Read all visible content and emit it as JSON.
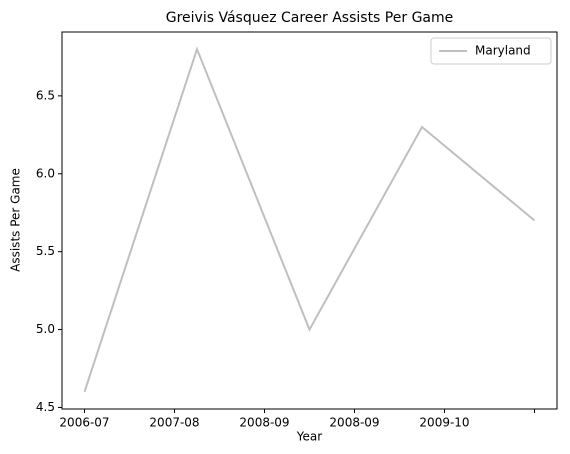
{
  "chart_data": {
    "type": "line",
    "title": "Greivis Vásquez Career Assists Per Game",
    "xlabel": "Year",
    "ylabel": "Assists Per Game",
    "x": [
      0,
      1,
      2,
      3,
      4
    ],
    "series": [
      {
        "name": "Maryland",
        "color": "#bfbfbf",
        "values": [
          4.6,
          6.8,
          5.0,
          6.3,
          5.7
        ]
      }
    ],
    "xlim": [
      -0.2,
      4.2
    ],
    "xticks": [
      {
        "value": 0,
        "label": "2006-07"
      },
      {
        "value": 0.8,
        "label": "2007-08"
      },
      {
        "value": 1.6,
        "label": "2008-09"
      },
      {
        "value": 2.4,
        "label": "2008-09"
      },
      {
        "value": 3.2,
        "label": "2009-10"
      },
      {
        "value": 4.0,
        "label": null
      }
    ],
    "ylim": [
      4.49,
      6.91
    ],
    "yticks": [
      {
        "value": 4.5,
        "label": "4.5"
      },
      {
        "value": 5.0,
        "label": "5.0"
      },
      {
        "value": 5.5,
        "label": "5.5"
      },
      {
        "value": 6.0,
        "label": "6.0"
      },
      {
        "value": 6.5,
        "label": "6.5"
      }
    ],
    "legend": "upper right",
    "grid": false
  }
}
